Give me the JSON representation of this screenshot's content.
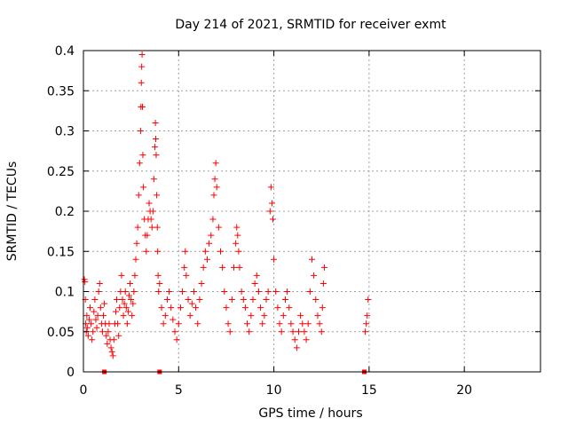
{
  "chart_data": {
    "type": "scatter",
    "title": "Day 214 of 2021, SRMTID for receiver exmt",
    "xlabel": "GPS time / hours",
    "ylabel": "SRMTID / TECUs",
    "xlim": [
      0,
      24
    ],
    "ylim": [
      0,
      0.4
    ],
    "xticks": [
      0,
      5,
      10,
      15,
      20
    ],
    "xtick_labels": [
      "0",
      "5",
      "10",
      "15",
      "20"
    ],
    "yticks": [
      0,
      0.05,
      0.1,
      0.15,
      0.2,
      0.25,
      0.3,
      0.35,
      0.4
    ],
    "ytick_labels": [
      "0",
      "0.05",
      "0.1",
      "0.15",
      "0.2",
      "0.25",
      "0.3",
      "0.35",
      "0.4"
    ],
    "grid": true,
    "marker": "+",
    "color": "#ff0000",
    "zero_markers_x": [
      1.1,
      4.0,
      14.75
    ],
    "series": [
      {
        "name": "SRMTID",
        "points": [
          [
            0.05,
            0.115
          ],
          [
            0.08,
            0.112
          ],
          [
            0.1,
            0.09
          ],
          [
            0.12,
            0.06
          ],
          [
            0.15,
            0.05
          ],
          [
            0.18,
            0.07
          ],
          [
            0.2,
            0.055
          ],
          [
            0.25,
            0.045
          ],
          [
            0.3,
            0.065
          ],
          [
            0.35,
            0.08
          ],
          [
            0.4,
            0.06
          ],
          [
            0.45,
            0.04
          ],
          [
            0.5,
            0.05
          ],
          [
            0.55,
            0.075
          ],
          [
            0.6,
            0.09
          ],
          [
            0.65,
            0.065
          ],
          [
            0.7,
            0.055
          ],
          [
            0.75,
            0.07
          ],
          [
            0.8,
            0.1
          ],
          [
            0.85,
            0.11
          ],
          [
            0.9,
            0.08
          ],
          [
            0.95,
            0.06
          ],
          [
            1.0,
            0.05
          ],
          [
            1.05,
            0.07
          ],
          [
            1.1,
            0.085
          ],
          [
            1.15,
            0.06
          ],
          [
            1.2,
            0.045
          ],
          [
            1.25,
            0.035
          ],
          [
            1.3,
            0.05
          ],
          [
            1.35,
            0.06
          ],
          [
            1.4,
            0.04
          ],
          [
            1.45,
            0.03
          ],
          [
            1.5,
            0.025
          ],
          [
            1.55,
            0.02
          ],
          [
            1.6,
            0.04
          ],
          [
            1.65,
            0.06
          ],
          [
            1.7,
            0.075
          ],
          [
            1.75,
            0.09
          ],
          [
            1.8,
            0.06
          ],
          [
            1.85,
            0.045
          ],
          [
            1.9,
            0.08
          ],
          [
            1.95,
            0.1
          ],
          [
            2.0,
            0.12
          ],
          [
            2.05,
            0.09
          ],
          [
            2.1,
            0.07
          ],
          [
            2.15,
            0.085
          ],
          [
            2.2,
            0.1
          ],
          [
            2.25,
            0.08
          ],
          [
            2.3,
            0.06
          ],
          [
            2.35,
            0.075
          ],
          [
            2.4,
            0.095
          ],
          [
            2.45,
            0.11
          ],
          [
            2.5,
            0.09
          ],
          [
            2.55,
            0.07
          ],
          [
            2.6,
            0.085
          ],
          [
            2.65,
            0.1
          ],
          [
            2.7,
            0.12
          ],
          [
            2.75,
            0.14
          ],
          [
            2.8,
            0.16
          ],
          [
            2.85,
            0.18
          ],
          [
            2.9,
            0.22
          ],
          [
            2.95,
            0.26
          ],
          [
            3.0,
            0.3
          ],
          [
            3.02,
            0.33
          ],
          [
            3.04,
            0.36
          ],
          [
            3.06,
            0.38
          ],
          [
            3.08,
            0.395
          ],
          [
            3.1,
            0.33
          ],
          [
            3.12,
            0.27
          ],
          [
            3.15,
            0.23
          ],
          [
            3.2,
            0.19
          ],
          [
            3.25,
            0.17
          ],
          [
            3.3,
            0.15
          ],
          [
            3.35,
            0.17
          ],
          [
            3.4,
            0.19
          ],
          [
            3.45,
            0.21
          ],
          [
            3.5,
            0.2
          ],
          [
            3.55,
            0.19
          ],
          [
            3.6,
            0.18
          ],
          [
            3.65,
            0.2
          ],
          [
            3.7,
            0.24
          ],
          [
            3.75,
            0.28
          ],
          [
            3.78,
            0.31
          ],
          [
            3.8,
            0.29
          ],
          [
            3.82,
            0.27
          ],
          [
            3.85,
            0.22
          ],
          [
            3.88,
            0.18
          ],
          [
            3.9,
            0.15
          ],
          [
            3.92,
            0.12
          ],
          [
            3.95,
            0.1
          ],
          [
            4.0,
            0.11
          ],
          [
            4.1,
            0.08
          ],
          [
            4.2,
            0.06
          ],
          [
            4.3,
            0.07
          ],
          [
            4.4,
            0.09
          ],
          [
            4.5,
            0.1
          ],
          [
            4.6,
            0.08
          ],
          [
            4.7,
            0.065
          ],
          [
            4.8,
            0.05
          ],
          [
            4.9,
            0.04
          ],
          [
            5.0,
            0.06
          ],
          [
            5.1,
            0.08
          ],
          [
            5.2,
            0.1
          ],
          [
            5.3,
            0.13
          ],
          [
            5.35,
            0.15
          ],
          [
            5.4,
            0.12
          ],
          [
            5.5,
            0.09
          ],
          [
            5.6,
            0.07
          ],
          [
            5.7,
            0.085
          ],
          [
            5.8,
            0.1
          ],
          [
            5.9,
            0.08
          ],
          [
            6.0,
            0.06
          ],
          [
            6.1,
            0.09
          ],
          [
            6.2,
            0.11
          ],
          [
            6.3,
            0.13
          ],
          [
            6.4,
            0.15
          ],
          [
            6.5,
            0.14
          ],
          [
            6.6,
            0.16
          ],
          [
            6.7,
            0.17
          ],
          [
            6.8,
            0.19
          ],
          [
            6.85,
            0.22
          ],
          [
            6.9,
            0.24
          ],
          [
            6.95,
            0.26
          ],
          [
            7.0,
            0.23
          ],
          [
            7.1,
            0.18
          ],
          [
            7.2,
            0.15
          ],
          [
            7.3,
            0.13
          ],
          [
            7.4,
            0.1
          ],
          [
            7.5,
            0.08
          ],
          [
            7.6,
            0.06
          ],
          [
            7.7,
            0.05
          ],
          [
            7.8,
            0.09
          ],
          [
            7.9,
            0.13
          ],
          [
            8.0,
            0.16
          ],
          [
            8.05,
            0.18
          ],
          [
            8.1,
            0.17
          ],
          [
            8.15,
            0.15
          ],
          [
            8.2,
            0.13
          ],
          [
            8.3,
            0.1
          ],
          [
            8.4,
            0.09
          ],
          [
            8.5,
            0.08
          ],
          [
            8.6,
            0.06
          ],
          [
            8.7,
            0.05
          ],
          [
            8.8,
            0.07
          ],
          [
            8.9,
            0.09
          ],
          [
            9.0,
            0.11
          ],
          [
            9.1,
            0.12
          ],
          [
            9.2,
            0.1
          ],
          [
            9.3,
            0.08
          ],
          [
            9.4,
            0.06
          ],
          [
            9.5,
            0.07
          ],
          [
            9.6,
            0.09
          ],
          [
            9.7,
            0.1
          ],
          [
            9.8,
            0.2
          ],
          [
            9.85,
            0.23
          ],
          [
            9.9,
            0.21
          ],
          [
            9.95,
            0.19
          ],
          [
            10.0,
            0.14
          ],
          [
            10.1,
            0.1
          ],
          [
            10.2,
            0.08
          ],
          [
            10.3,
            0.06
          ],
          [
            10.4,
            0.05
          ],
          [
            10.5,
            0.07
          ],
          [
            10.6,
            0.09
          ],
          [
            10.7,
            0.1
          ],
          [
            10.8,
            0.08
          ],
          [
            10.9,
            0.06
          ],
          [
            11.0,
            0.05
          ],
          [
            11.1,
            0.04
          ],
          [
            11.2,
            0.03
          ],
          [
            11.3,
            0.05
          ],
          [
            11.4,
            0.07
          ],
          [
            11.5,
            0.06
          ],
          [
            11.6,
            0.05
          ],
          [
            11.7,
            0.04
          ],
          [
            11.8,
            0.06
          ],
          [
            11.9,
            0.1
          ],
          [
            12.0,
            0.14
          ],
          [
            12.1,
            0.12
          ],
          [
            12.2,
            0.09
          ],
          [
            12.3,
            0.07
          ],
          [
            12.4,
            0.06
          ],
          [
            12.5,
            0.05
          ],
          [
            12.55,
            0.08
          ],
          [
            12.6,
            0.11
          ],
          [
            12.65,
            0.13
          ],
          [
            14.8,
            0.05
          ],
          [
            14.85,
            0.06
          ],
          [
            14.9,
            0.07
          ],
          [
            14.95,
            0.09
          ]
        ]
      }
    ]
  }
}
